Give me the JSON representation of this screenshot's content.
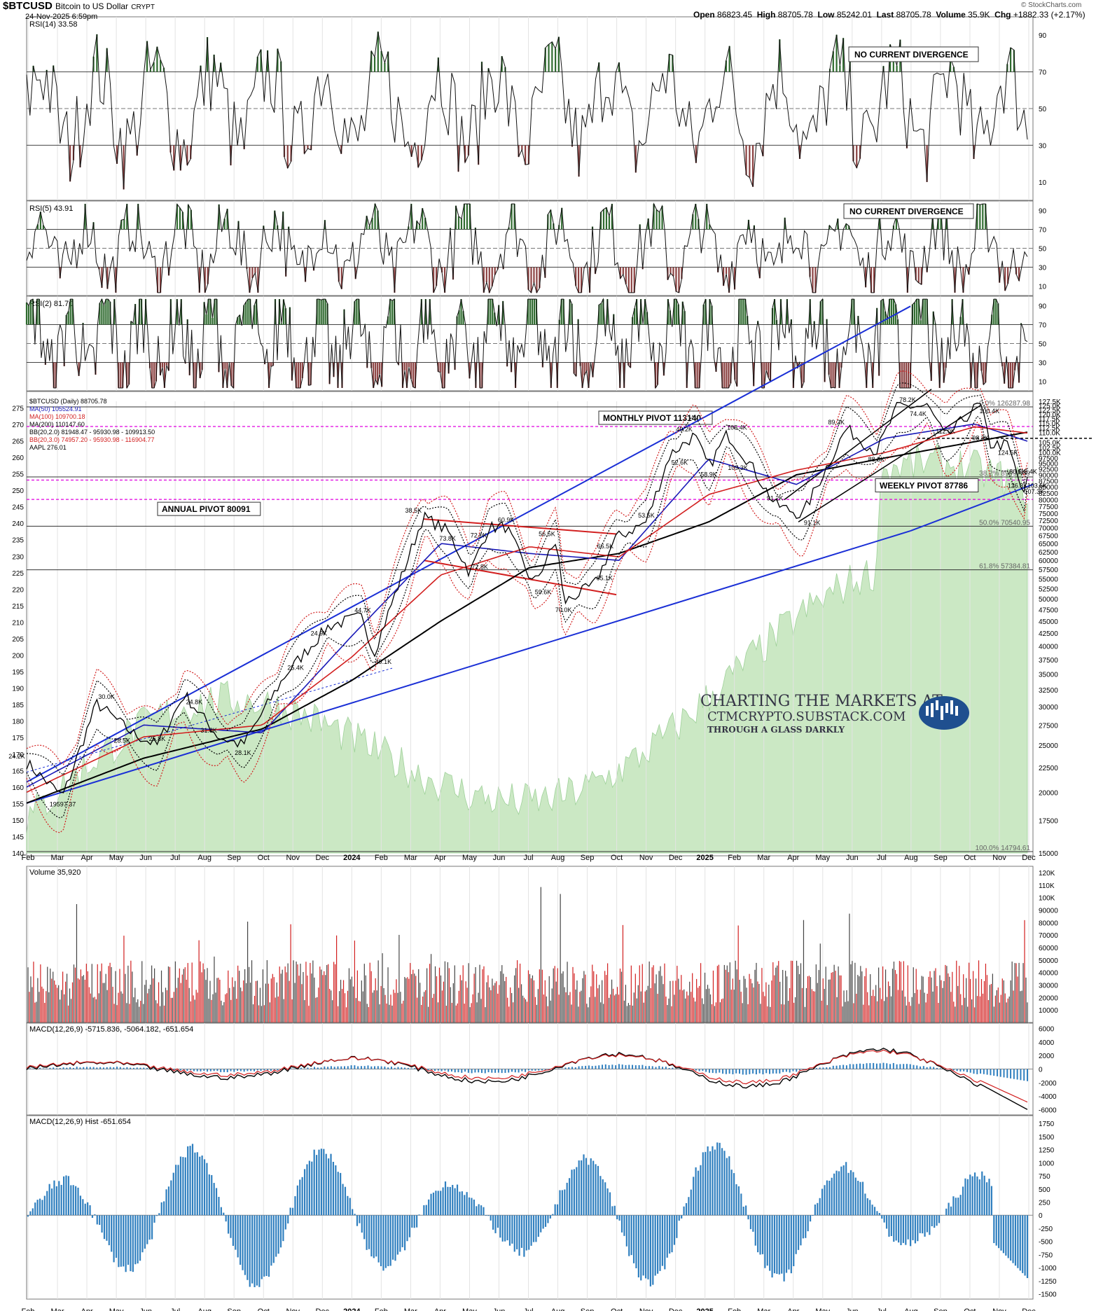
{
  "header": {
    "symbol": "$BTCUSD",
    "name": "Bitcoin to US Dollar",
    "exchange": "CRYPT",
    "date": "24-Nov-2025 6:59pm",
    "open_label": "Open",
    "open": "86823.45",
    "high_label": "High",
    "high": "88705.78",
    "low_label": "Low",
    "low": "85242.01",
    "last_label": "Last",
    "last": "88705.78",
    "volume_label": "Volume",
    "volume": "35.9K",
    "chg_label": "Chg",
    "chg": "+1882.33 (+2.17%)",
    "copyright": "© StockCharts.com"
  },
  "colors": {
    "price": "#000000",
    "ma50": "#1a1ab8",
    "ma100": "#d21f1f",
    "ma200": "#000000",
    "aapl_fill": "#cbe8c4",
    "pivot": "#e000e0",
    "trend": "#1a2fd6",
    "rsi_up": "#2f6b2f",
    "rsi_down": "#8a4040",
    "macd_hist": "#2f7fbf"
  },
  "panels": {
    "rsi14": {
      "label": "RSI(14) 33.58",
      "ticks": [
        "90",
        "70",
        "50",
        "30",
        "10"
      ],
      "note": "NO CURRENT DIVERGENCE"
    },
    "rsi5": {
      "label": "RSI(5) 43.91",
      "ticks": [
        "90",
        "70",
        "50",
        "30",
        "10"
      ],
      "note": "NO CURRENT DIVERGENCE"
    },
    "rsi2": {
      "label": "RSI(2) 81.70",
      "ticks": [
        "90",
        "70",
        "50",
        "30",
        "10"
      ]
    },
    "price": {
      "legend": [
        "$BTCUSD (Daily) 88705.78",
        "MA(50) 105524.91",
        "MA(100) 109700.18",
        "MA(200) 110147.60",
        "BB(20,2.0) 81948.47 - 95930.98 - 109913.50",
        "BB(20,3.0) 74957.20 - 95930.98 - 116904.77",
        "AAPL 276.01"
      ],
      "left_ticks": [
        "275",
        "270",
        "265",
        "260",
        "255",
        "250",
        "245",
        "240",
        "235",
        "230",
        "225",
        "220",
        "215",
        "210",
        "205",
        "200",
        "195",
        "190",
        "185",
        "180",
        "175",
        "170",
        "165",
        "160",
        "155",
        "150",
        "145",
        "140"
      ],
      "right_ticks": [
        "127.5K",
        "125.0K",
        "122.5K",
        "120.0K",
        "117.5K",
        "115.0K",
        "112.5K",
        "110.0K",
        "105.0K",
        "102.5K",
        "100.0K",
        "97500",
        "95000",
        "92500",
        "90000",
        "87500",
        "85000",
        "82500",
        "80000",
        "77500",
        "75000",
        "72500",
        "70000",
        "67500",
        "65000",
        "62500",
        "60000",
        "57500",
        "55000",
        "52500",
        "50000",
        "47500",
        "45000",
        "42500",
        "40000",
        "37500",
        "35000",
        "32500",
        "30000",
        "27500",
        "25000",
        "22500",
        "20000",
        "17500",
        "15000"
      ],
      "fib": [
        "0.0% 126287.98",
        "38.2% 89097.09",
        "50.0% 70540.95",
        "61.8% 57384.81",
        "100.0% 14794.61"
      ],
      "pivots": {
        "monthly": "MONTHLY PIVOT 113140",
        "weekly": "WEEKLY PIVOT 87786",
        "annual": "ANNUAL PIVOT 80091"
      },
      "point_labels": [
        "24.2K",
        "19597.37",
        "30.0K",
        "28.5K",
        "25.8K",
        "24.8K",
        "31.8K",
        "28.1K",
        "25.4K",
        "24.9K",
        "44.7K",
        "49.1K",
        "38.5K",
        "73.8K",
        "72.8K",
        "72.0K",
        "60.9K",
        "59.6K",
        "56.5K",
        "70.0K",
        "65.1K",
        "66.5K",
        "53.5K",
        "52.6K",
        "49.2K",
        "58.9K",
        "108.4K",
        "109.3K",
        "91.2K",
        "91.1K",
        "89.2K",
        "88.8K",
        "78.2K",
        "74.4K",
        "112.0K",
        "100.4K",
        "98.3K",
        "124.5K",
        "107.3K",
        "126.3K",
        "116.4K",
        "103.6K",
        "80.6K"
      ],
      "watermark": [
        "CHARTING THE MARKETS AT",
        "CTMCRYPTO.SUBSTACK.COM",
        "THROUGH A GLASS DARKLY"
      ]
    },
    "volume": {
      "label": "Volume 35,920",
      "ticks": [
        "120K",
        "110K",
        "100K",
        "90000",
        "80000",
        "70000",
        "60000",
        "50000",
        "40000",
        "30000",
        "20000",
        "10000"
      ]
    },
    "macd": {
      "label": "MACD(12,26,9) -5715.836, -5064.182, -651.654",
      "ticks": [
        "6000",
        "4000",
        "2000",
        "0",
        "-2000",
        "-4000",
        "-6000"
      ]
    },
    "hist": {
      "label": "MACD(12,26,9) Hist -651.654",
      "ticks": [
        "1750",
        "1500",
        "1250",
        "1000",
        "750",
        "500",
        "250",
        "0",
        "-250",
        "-500",
        "-750",
        "-1000",
        "-1250",
        "-1500"
      ]
    }
  },
  "x_axis_labels": [
    "Feb",
    "Mar",
    "Apr",
    "May",
    "Jun",
    "Jul",
    "Aug",
    "Sep",
    "Oct",
    "Nov",
    "Dec",
    "2024",
    "Feb",
    "Mar",
    "Apr",
    "May",
    "Jun",
    "Jul",
    "Aug",
    "Sep",
    "Oct",
    "Nov",
    "Dec",
    "2025",
    "Feb",
    "Mar",
    "Apr",
    "May",
    "Jun",
    "Jul",
    "Aug",
    "Sep",
    "Oct",
    "Nov",
    "Dec"
  ],
  "chart_data": {
    "type": "line",
    "title": "$BTCUSD Bitcoin to US Dollar CRYPT",
    "x_range": [
      "2023-02-01",
      "2025-11-24"
    ],
    "y_range": [
      15000,
      127500
    ],
    "y_scale": "log",
    "grid": true,
    "series": [
      {
        "name": "$BTCUSD (Daily)",
        "x": [
          "2023-02-01",
          "2023-03-10",
          "2023-04-14",
          "2023-05-20",
          "2023-06-15",
          "2023-07-13",
          "2023-08-17",
          "2023-09-11",
          "2023-10-25",
          "2023-12-08",
          "2024-01-12",
          "2024-01-23",
          "2024-03-14",
          "2024-04-08",
          "2024-05-01",
          "2024-05-20",
          "2024-06-07",
          "2024-07-05",
          "2024-07-29",
          "2024-08-05",
          "2024-09-06",
          "2024-09-27",
          "2024-10-29",
          "2024-11-22",
          "2024-12-17",
          "2025-01-01",
          "2025-01-20",
          "2025-02-10",
          "2025-03-10",
          "2025-04-07",
          "2025-05-22",
          "2025-06-22",
          "2025-07-14",
          "2025-08-14",
          "2025-09-01",
          "2025-10-06",
          "2025-10-17",
          "2025-11-04",
          "2025-11-21",
          "2025-11-24"
        ],
        "values": [
          23000,
          19597,
          30500,
          26500,
          25000,
          31800,
          26000,
          25000,
          35000,
          44000,
          46000,
          38500,
          73800,
          69000,
          56500,
          70000,
          70500,
          53500,
          66000,
          49200,
          53500,
          66500,
          72000,
          99000,
          108400,
          93500,
          109300,
          96500,
          78200,
          74400,
          112000,
          100400,
          124500,
          124500,
          107300,
          126300,
          104000,
          103600,
          80600,
          88706
        ]
      },
      {
        "name": "MA(200)",
        "x": [
          "2023-02-01",
          "2023-06-01",
          "2023-10-01",
          "2024-01-01",
          "2024-04-01",
          "2024-07-01",
          "2024-10-01",
          "2025-01-01",
          "2025-04-01",
          "2025-07-01",
          "2025-11-24"
        ],
        "values": [
          19000,
          23500,
          27000,
          34000,
          45000,
          58000,
          62000,
          72000,
          90000,
          97500,
          110148
        ]
      },
      {
        "name": "MA(50)",
        "x": [
          "2023-02-01",
          "2023-06-01",
          "2023-10-01",
          "2024-01-01",
          "2024-04-01",
          "2024-07-01",
          "2024-10-01",
          "2025-01-01",
          "2025-04-01",
          "2025-07-01",
          "2025-10-01",
          "2025-11-24"
        ],
        "values": [
          20500,
          27500,
          26500,
          42000,
          65000,
          62000,
          60000,
          97000,
          86000,
          107000,
          114500,
          105525
        ]
      },
      {
        "name": "MA(100)",
        "x": [
          "2023-02-01",
          "2023-06-01",
          "2023-10-01",
          "2024-01-01",
          "2024-04-01",
          "2024-07-01",
          "2024-10-01",
          "2025-01-01",
          "2025-04-01",
          "2025-07-01",
          "2025-10-01",
          "2025-11-24"
        ],
        "values": [
          20000,
          26000,
          27500,
          38000,
          56000,
          64000,
          61000,
          82000,
          92000,
          100000,
          113000,
          109700
        ]
      }
    ]
  }
}
